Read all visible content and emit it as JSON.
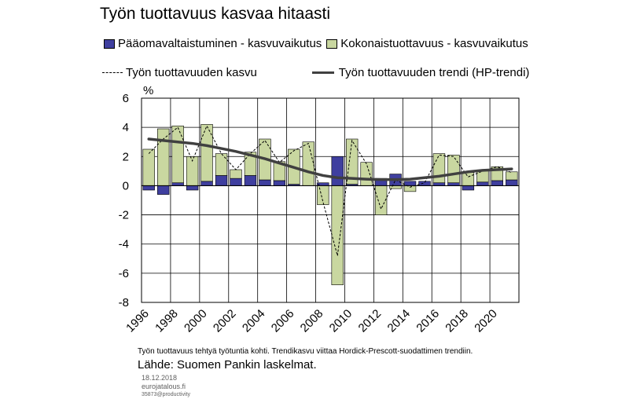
{
  "chart_data": {
    "type": "bar",
    "title": "Työn tuottavuus kasvaa hitaasti",
    "ylabel": "%",
    "ylim": [
      -8,
      6
    ],
    "y_ticks": [
      "6",
      "4",
      "2",
      "0",
      "-2",
      "-4",
      "-6",
      "-8"
    ],
    "x_tick_labels": [
      "1996",
      "1998",
      "2000",
      "2002",
      "2004",
      "2006",
      "2008",
      "2010",
      "2012",
      "2014",
      "2016",
      "2018",
      "2020"
    ],
    "years": [
      1996,
      1997,
      1998,
      1999,
      2000,
      2001,
      2002,
      2003,
      2004,
      2005,
      2006,
      2007,
      2008,
      2009,
      2010,
      2011,
      2012,
      2013,
      2014,
      2015,
      2016,
      2017,
      2018,
      2019,
      2020,
      2021
    ],
    "series": [
      {
        "name": "Pääomavaltaistuminen - kasvuvaikutus",
        "kind": "bar",
        "color": "#3f3f9f",
        "values": [
          -0.3,
          -0.6,
          0.2,
          -0.3,
          0.3,
          0.7,
          0.5,
          0.7,
          0.4,
          0.35,
          0.1,
          0.0,
          0.2,
          2.0,
          0.1,
          0.0,
          0.5,
          0.8,
          0.3,
          0.3,
          0.2,
          0.2,
          -0.3,
          0.25,
          0.35,
          0.4
        ]
      },
      {
        "name": "Kokonaistuottavuus - kasvuvaikutus",
        "kind": "bar",
        "color": "#c9d7a0",
        "values": [
          2.5,
          3.9,
          3.9,
          2.0,
          3.9,
          1.5,
          0.6,
          1.6,
          2.8,
          1.3,
          2.4,
          3.0,
          -1.3,
          -6.8,
          3.1,
          1.6,
          -2.0,
          -0.2,
          -0.4,
          0.0,
          2.0,
          1.9,
          0.9,
          0.8,
          0.95,
          0.55
        ]
      },
      {
        "name": "Työn tuottavuuden kasvu",
        "kind": "line-dashed",
        "color": "#000000",
        "values": [
          2.2,
          3.2,
          4.0,
          1.7,
          4.1,
          2.2,
          1.1,
          2.2,
          3.1,
          1.6,
          2.4,
          2.9,
          -1.1,
          -4.8,
          3.1,
          1.5,
          -1.6,
          0.4,
          -0.1,
          0.2,
          2.1,
          2.0,
          0.6,
          1.0,
          1.3,
          0.9
        ]
      },
      {
        "name": "Työn tuottavuuden trendi (HP-trendi)",
        "kind": "line",
        "color": "#404040",
        "values": [
          3.2,
          3.1,
          3.0,
          2.9,
          2.75,
          2.55,
          2.35,
          2.1,
          1.85,
          1.55,
          1.25,
          0.95,
          0.7,
          0.55,
          0.5,
          0.45,
          0.42,
          0.42,
          0.45,
          0.55,
          0.65,
          0.8,
          0.95,
          1.05,
          1.1,
          1.15
        ]
      }
    ],
    "grid": true,
    "legend_position": "top"
  },
  "note": "Työn tuottavuus tehtyä työtuntia kohti. Trendikasvu viittaa Hordick-Prescott-suodattimen trendiin.",
  "source": "Lähde: Suomen Pankin laskelmat.",
  "date": "18.12.2018",
  "site": "eurojatalous.fi",
  "id": "35873@productivity"
}
